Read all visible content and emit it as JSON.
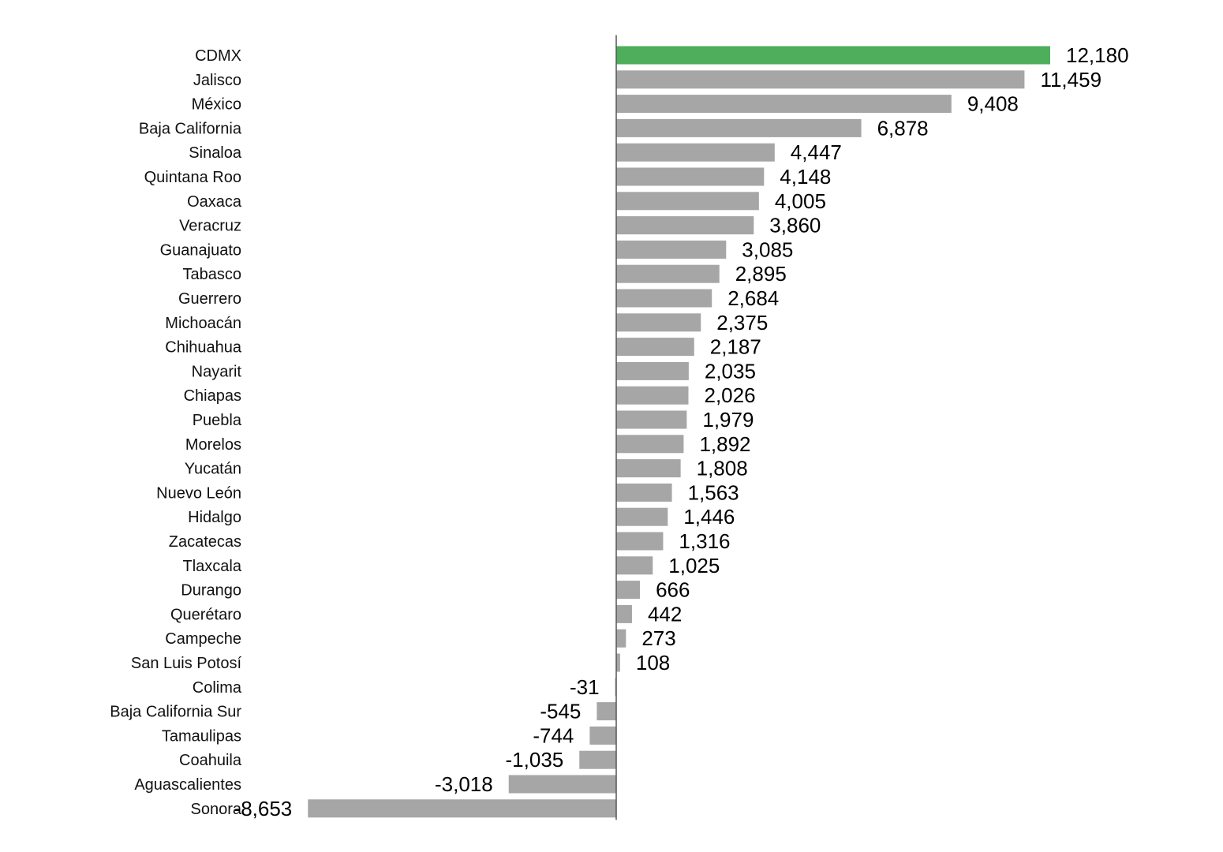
{
  "chart_data": {
    "type": "bar",
    "orientation": "horizontal",
    "title": "",
    "xlabel": "",
    "ylabel": "",
    "categories": [
      "CDMX",
      "Jalisco",
      "México",
      "Baja California",
      "Sinaloa",
      "Quintana Roo",
      "Oaxaca",
      "Veracruz",
      "Guanajuato",
      "Tabasco",
      "Guerrero",
      "Michoacán",
      "Chihuahua",
      "Nayarit",
      "Chiapas",
      "Puebla",
      "Morelos",
      "Yucatán",
      "Nuevo León",
      "Hidalgo",
      "Zacatecas",
      "Tlaxcala",
      "Durango",
      "Querétaro",
      "Campeche",
      "San Luis Potosí",
      "Colima",
      "Baja California Sur",
      "Tamaulipas",
      "Coahuila",
      "Aguascalientes",
      "Sonora"
    ],
    "values": [
      12180,
      11459,
      9408,
      6878,
      4447,
      4148,
      4005,
      3860,
      3085,
      2895,
      2684,
      2375,
      2187,
      2035,
      2026,
      1979,
      1892,
      1808,
      1563,
      1446,
      1316,
      1025,
      666,
      442,
      273,
      108,
      -31,
      -545,
      -744,
      -1035,
      -3018,
      -8653
    ],
    "value_labels": [
      "12,180",
      "11,459",
      "9,408",
      "6,878",
      "4,447",
      "4,148",
      "4,005",
      "3,860",
      "3,085",
      "2,895",
      "2,684",
      "2,375",
      "2,187",
      "2,035",
      "2,026",
      "1,979",
      "1,892",
      "1,808",
      "1,563",
      "1,446",
      "1,316",
      "1,025",
      "666",
      "442",
      "273",
      "108",
      "-31",
      "-545",
      "-744",
      "-1,035",
      "-3,018",
      "-8,653"
    ],
    "xlim": [
      -8653,
      12180
    ],
    "highlight_category": "CDMX",
    "grid": false,
    "legend": "none",
    "colors": {
      "highlight": "#4eae5b",
      "bar": "#a6a6a6",
      "axis": "#555555",
      "text": "#111111"
    }
  }
}
